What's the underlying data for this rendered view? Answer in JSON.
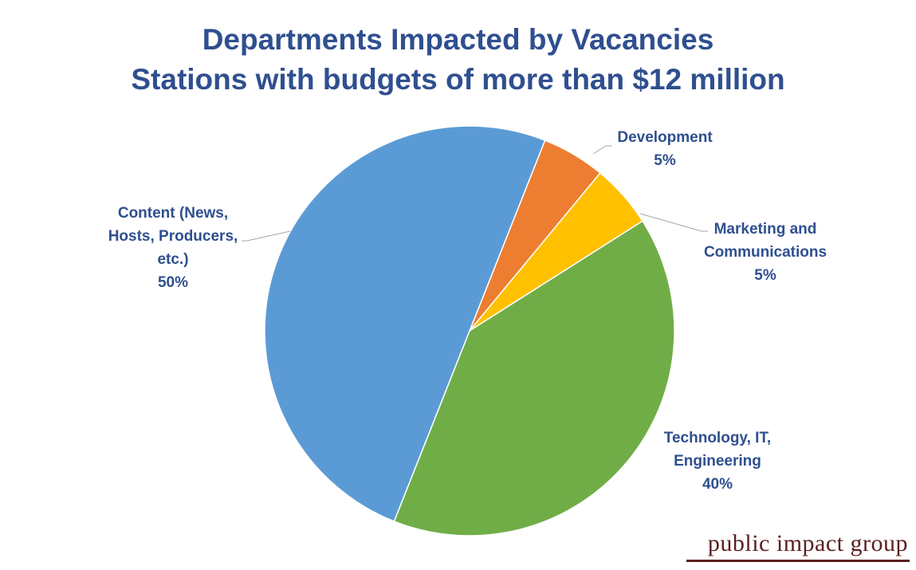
{
  "chart_data": {
    "type": "pie",
    "title": "Departments Impacted by Vacancies",
    "subtitle": "Stations with budgets of more than $12 million",
    "slices": [
      {
        "label_lines": [
          "Development",
          "5%"
        ],
        "value": 5,
        "color": "#ED7D31"
      },
      {
        "label_lines": [
          "Marketing and",
          "Communications",
          "5%"
        ],
        "value": 5,
        "color": "#FFC000"
      },
      {
        "label_lines": [
          "Technology, IT,",
          "Engineering",
          "40%"
        ],
        "value": 40,
        "color": "#70AD47"
      },
      {
        "label_lines": [
          "Content (News,",
          "Hosts, Producers,",
          "etc.)",
          "50%"
        ],
        "value": 50,
        "color": "#5B9BD5"
      }
    ],
    "start_angle_deg": 21.6,
    "legend": "none"
  },
  "brand": {
    "text": "public impact group"
  }
}
